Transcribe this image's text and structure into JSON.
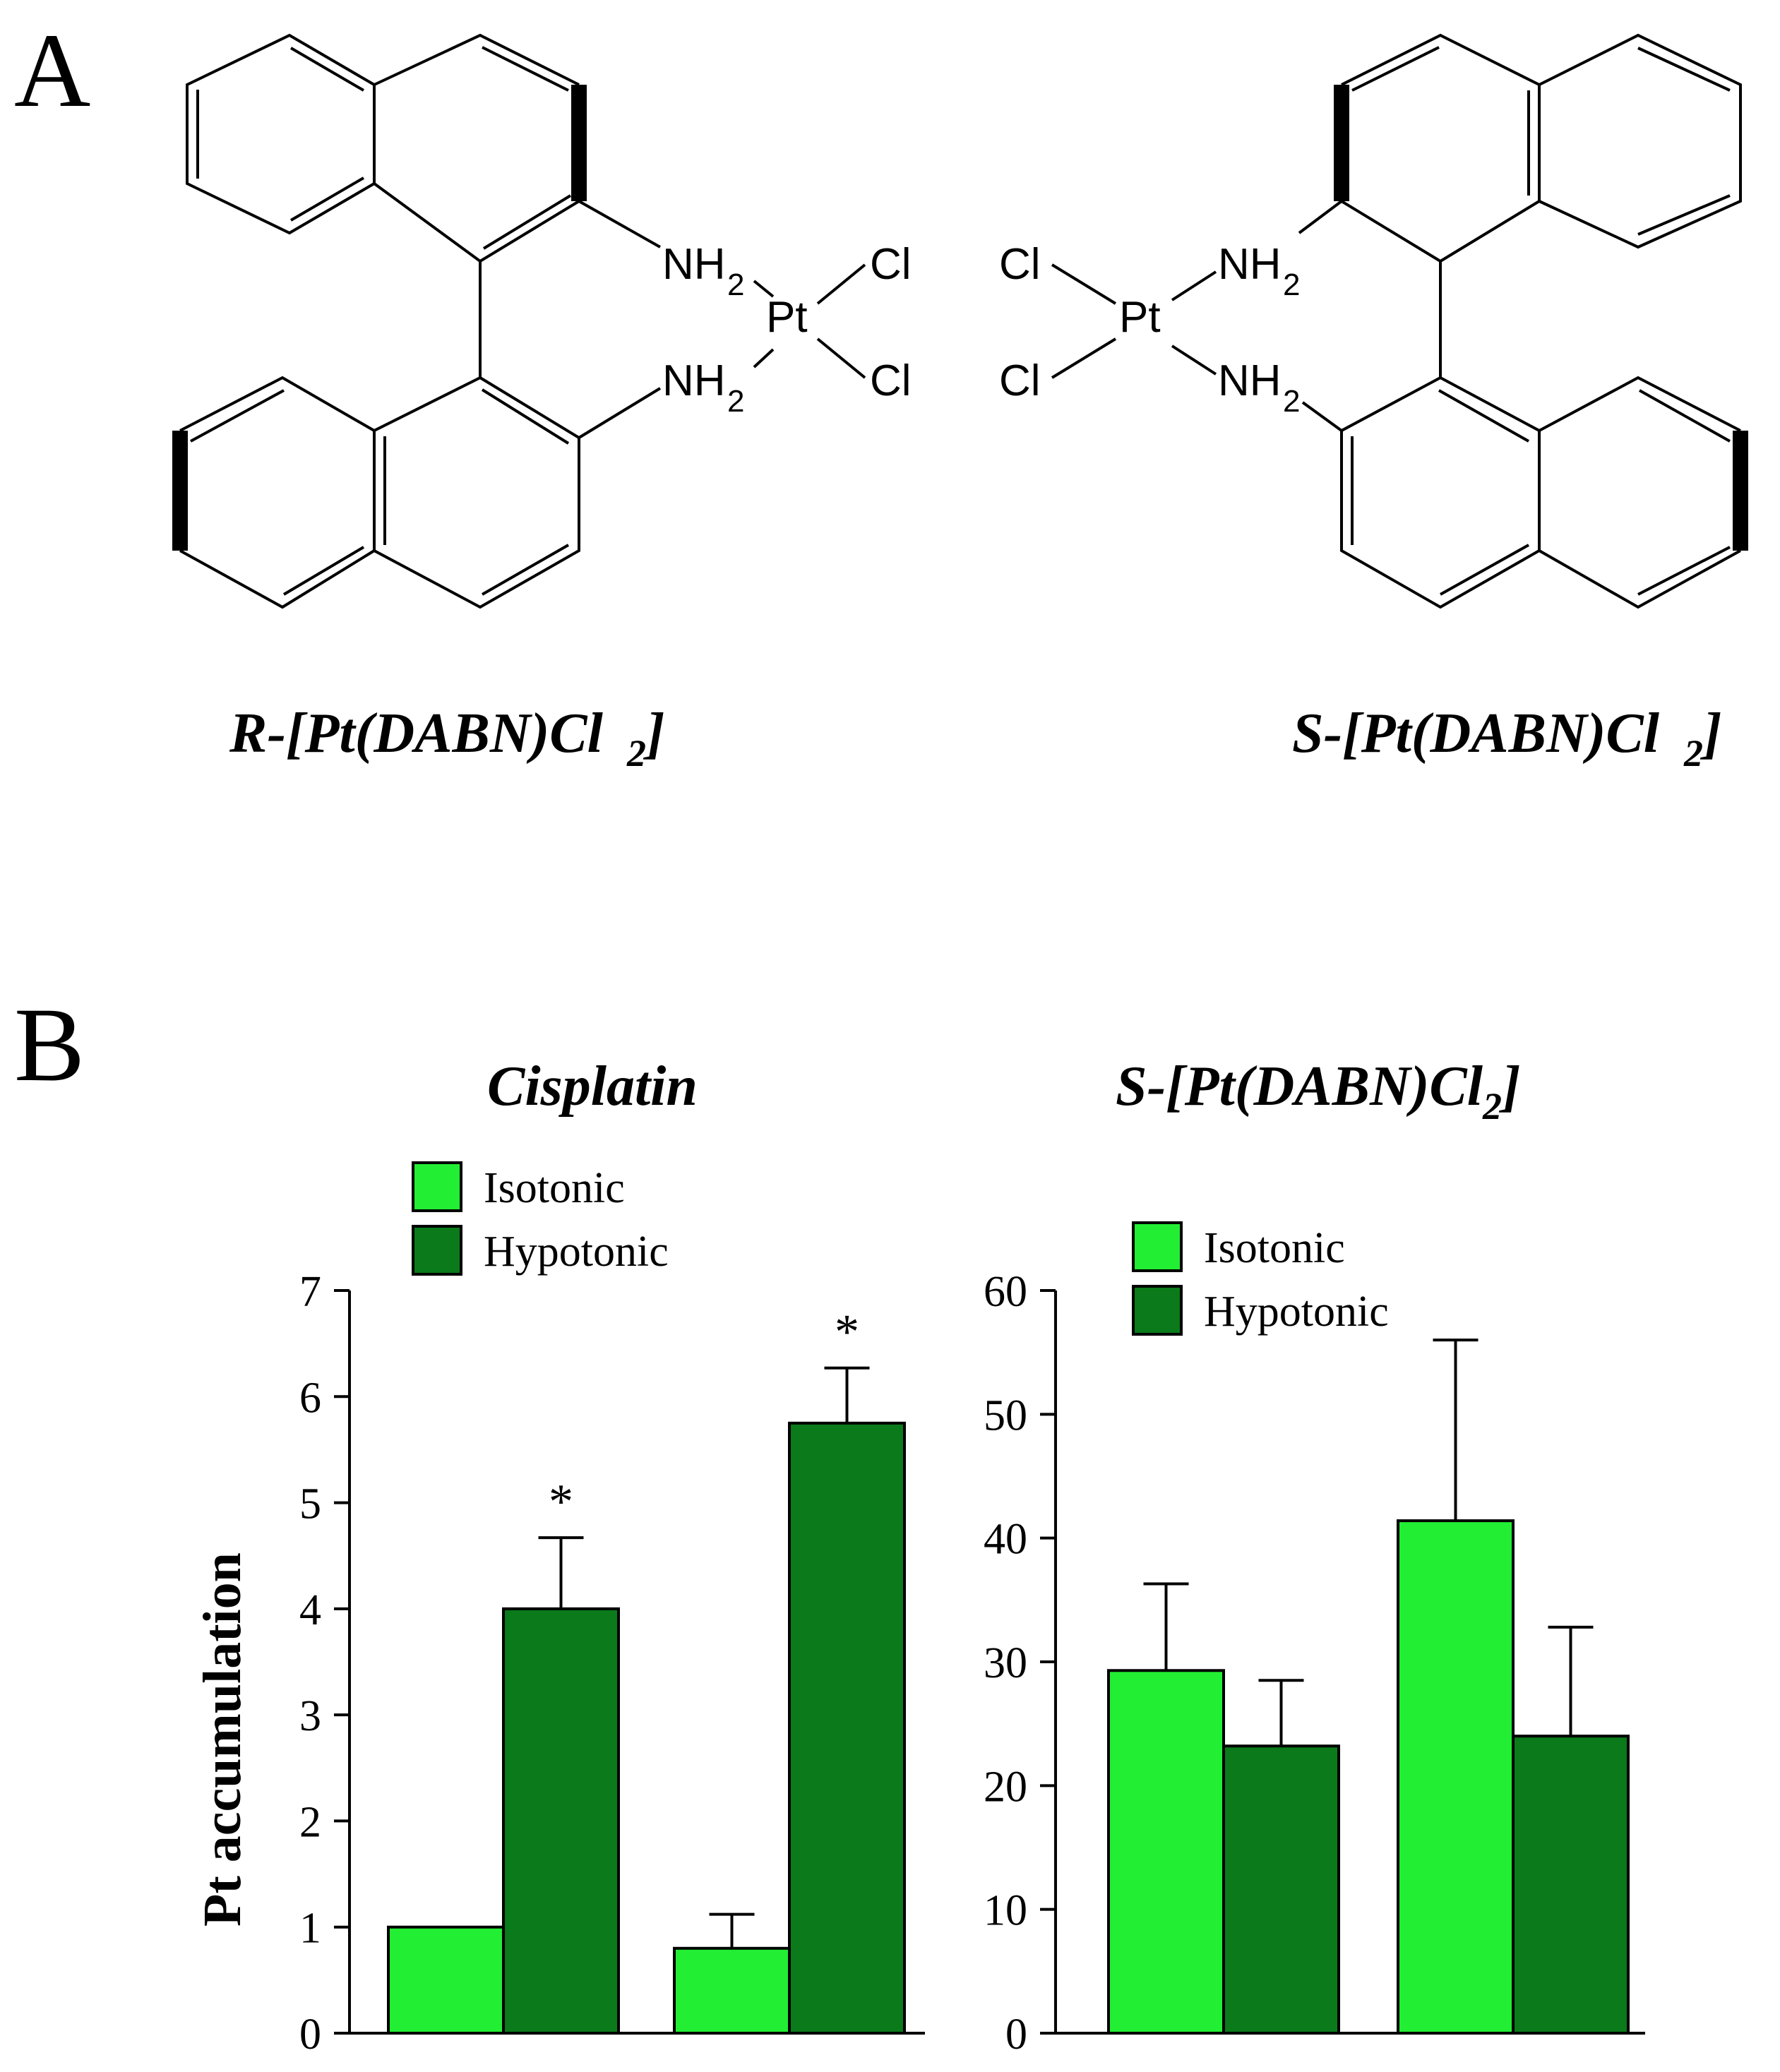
{
  "panels": {
    "a": {
      "letter": "A"
    },
    "b": {
      "letter": "B"
    }
  },
  "structures": {
    "left": {
      "caption": "R-[Pt(DABN)Cl",
      "caption_sub": "2",
      "caption_end": "]",
      "nh2_top": "NH",
      "nh2_bottom": "NH",
      "sub": "2",
      "metal": "Pt",
      "cl_top": "Cl",
      "cl_bottom": "Cl"
    },
    "right": {
      "caption": "S-[Pt(DABN)Cl",
      "caption_sub": "2",
      "caption_end": "]",
      "nh2_top": "NH",
      "nh2_bottom": "NH",
      "sub": "2",
      "metal": "Pt",
      "cl_top": "Cl",
      "cl_bottom": "Cl"
    }
  },
  "colors": {
    "isotonic": "#22ee33",
    "hypotonic": "#0a7a1a"
  },
  "chart_data": [
    {
      "type": "bar",
      "title": "Cisplatin",
      "title_sub": "",
      "title_end": "",
      "ylabel": "Pt accumulation",
      "ylim": [
        0,
        7
      ],
      "yticks": [
        "0",
        "1",
        "2",
        "3",
        "4",
        "5",
        "6",
        "7"
      ],
      "categories": [
        "",
        ""
      ],
      "legend": {
        "placement": "top-left",
        "entries": [
          "Isotonic",
          "Hypotonic"
        ]
      },
      "series": [
        {
          "name": "Isotonic",
          "values": [
            1.0,
            0.8
          ],
          "errors": [
            0,
            0.32
          ]
        },
        {
          "name": "Hypotonic",
          "values": [
            4.0,
            5.75
          ],
          "errors": [
            0.67,
            0.52
          ]
        }
      ],
      "annotations": [
        {
          "text": "*",
          "group": 0,
          "series": 1
        },
        {
          "text": "*",
          "group": 1,
          "series": 1
        }
      ]
    },
    {
      "type": "bar",
      "title": "S-[Pt(DABN)Cl",
      "title_sub": "2",
      "title_end": "]",
      "ylabel": "",
      "ylim": [
        0,
        60
      ],
      "yticks": [
        "0",
        "10",
        "20",
        "30",
        "40",
        "50",
        "60"
      ],
      "categories": [
        "",
        ""
      ],
      "legend": {
        "placement": "top-left",
        "entries": [
          "Isotonic",
          "Hypotonic"
        ]
      },
      "series": [
        {
          "name": "Isotonic",
          "values": [
            29.3,
            41.4
          ],
          "errors": [
            7.0,
            14.6
          ]
        },
        {
          "name": "Hypotonic",
          "values": [
            23.2,
            24.0
          ],
          "errors": [
            5.3,
            8.8
          ]
        }
      ],
      "annotations": []
    }
  ]
}
